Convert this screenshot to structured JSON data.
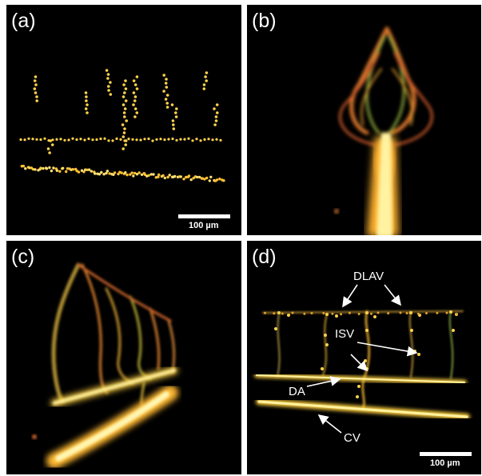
{
  "panels": {
    "a": {
      "label": "(a)",
      "scalebar": "100 µm"
    },
    "b": {
      "label": "(b)"
    },
    "c": {
      "label": "(c)"
    },
    "d": {
      "label": "(d)",
      "scalebar": "100 µm",
      "annotations": {
        "dlav": "DLAV",
        "isv": "ISV",
        "da": "DA",
        "cv": "CV"
      }
    }
  },
  "colors": {
    "background": "#000000",
    "vessel_core": "#ffe36a",
    "vessel_edge": "#e07a1a",
    "vessel_green": "#7fb03a",
    "text": "#ffffff"
  }
}
